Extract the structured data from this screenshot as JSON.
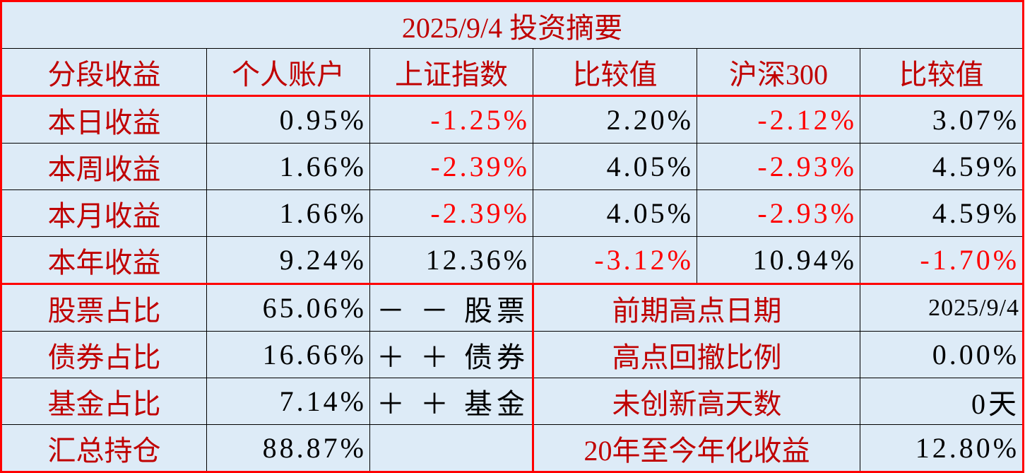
{
  "title": "2025/9/4  投资摘要",
  "headers": [
    "分段收益",
    "个人账户",
    "上证指数",
    "比较值",
    "沪深300",
    "比较值"
  ],
  "returns": [
    {
      "label": "本日收益",
      "personal": "0.95%",
      "sh": "-1.25%",
      "cmp1": "2.20%",
      "hs300": "-2.12%",
      "cmp2": "3.07%"
    },
    {
      "label": "本周收益",
      "personal": "1.66%",
      "sh": "-2.39%",
      "cmp1": "4.05%",
      "hs300": "-2.93%",
      "cmp2": "4.59%"
    },
    {
      "label": "本月收益",
      "personal": "1.66%",
      "sh": "-2.39%",
      "cmp1": "4.05%",
      "hs300": "-2.93%",
      "cmp2": "4.59%"
    },
    {
      "label": "本年收益",
      "personal": "9.24%",
      "sh": "12.36%",
      "cmp1": "-3.12%",
      "hs300": "10.94%",
      "cmp2": "-1.70%"
    }
  ],
  "allocation": [
    {
      "label": "股票占比",
      "value": "65.06%",
      "change": "－ － 股票",
      "metric": "前期高点日期",
      "metric_value": "2025/9/4"
    },
    {
      "label": "债券占比",
      "value": "16.66%",
      "change": "＋ ＋ 债券",
      "metric": "高点回撤比例",
      "metric_value": "0.00%"
    },
    {
      "label": "基金占比",
      "value": "7.14%",
      "change": "＋ ＋ 基金",
      "metric": "未创新高天数",
      "metric_value": "0天"
    },
    {
      "label": "汇总持仓",
      "value": "88.87%",
      "change": "",
      "metric": "20年至今年化收益",
      "metric_value": "12.80%"
    }
  ],
  "colors": {
    "background": "#DDEBF7",
    "label": "#C00000",
    "negative": "#FF0000",
    "border_accent": "#FF0000"
  }
}
